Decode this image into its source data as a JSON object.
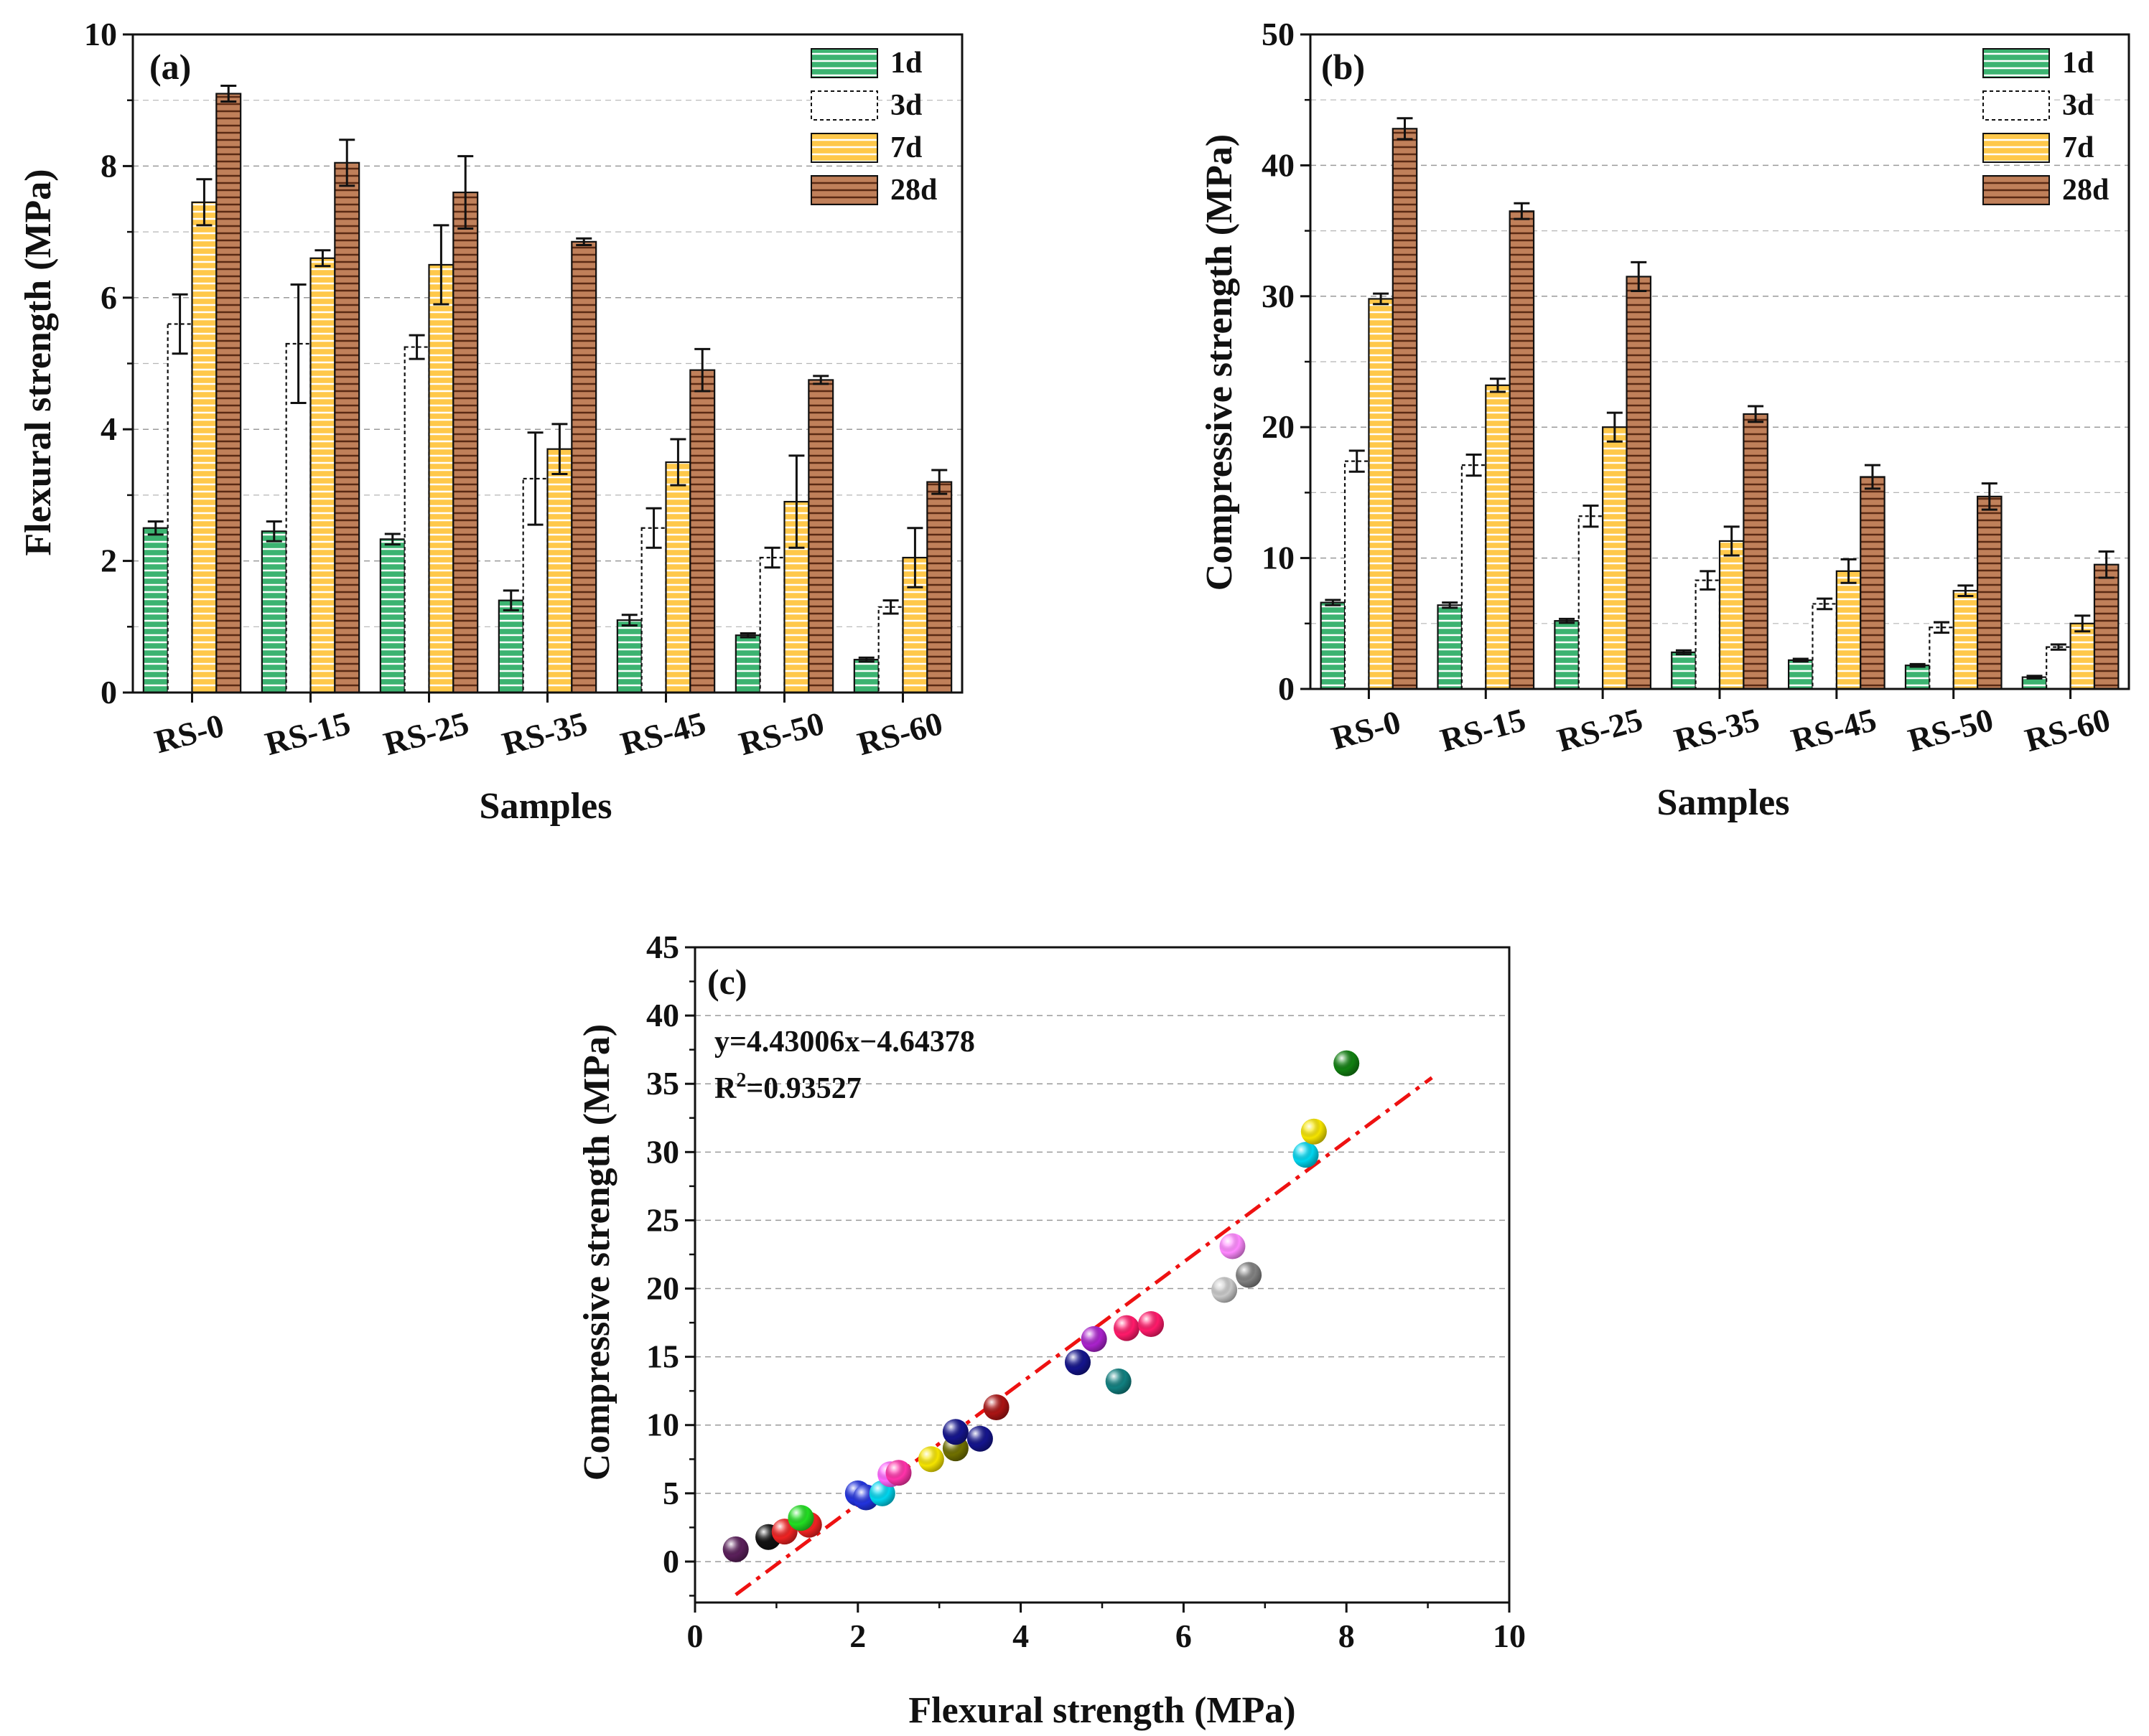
{
  "chart_data": [
    {
      "id": "a",
      "type": "bar",
      "panel_label": "(a)",
      "xlabel": "Samples",
      "ylabel": "Flexural strength (MPa)",
      "ylim": [
        0,
        10
      ],
      "yticks": [
        "0",
        "2",
        "4",
        "6",
        "8",
        "10"
      ],
      "categories": [
        "RS-0",
        "RS-15",
        "RS-25",
        "RS-35",
        "RS-45",
        "RS-50",
        "RS-60"
      ],
      "series": [
        {
          "name": "1d",
          "color": "#3cb371",
          "values": [
            2.5,
            2.45,
            2.33,
            1.4,
            1.1,
            0.87,
            0.5
          ],
          "errors": [
            0.1,
            0.15,
            0.08,
            0.15,
            0.08,
            0.03,
            0.03
          ]
        },
        {
          "name": "3d",
          "color": "#ffffff",
          "values": [
            5.6,
            5.3,
            5.25,
            3.25,
            2.5,
            2.05,
            1.3
          ],
          "errors": [
            0.45,
            0.9,
            0.18,
            0.7,
            0.3,
            0.15,
            0.1
          ]
        },
        {
          "name": "7d",
          "color": "#ffc84a",
          "values": [
            7.45,
            6.6,
            6.5,
            3.7,
            3.5,
            2.9,
            2.05
          ],
          "errors": [
            0.35,
            0.12,
            0.6,
            0.38,
            0.35,
            0.7,
            0.45
          ]
        },
        {
          "name": "28d",
          "color": "#c0805a",
          "values": [
            9.1,
            8.05,
            7.6,
            6.85,
            4.9,
            4.75,
            3.2
          ],
          "errors": [
            0.12,
            0.35,
            0.55,
            0.05,
            0.32,
            0.06,
            0.18
          ]
        }
      ],
      "legend_position": "top-right",
      "grid": true
    },
    {
      "id": "b",
      "type": "bar",
      "panel_label": "(b)",
      "xlabel": "Samples",
      "ylabel": "Compressive strength (MPa)",
      "ylim": [
        0,
        50
      ],
      "yticks": [
        "0",
        "10",
        "20",
        "30",
        "40",
        "50"
      ],
      "categories": [
        "RS-0",
        "RS-15",
        "RS-25",
        "RS-35",
        "RS-45",
        "RS-50",
        "RS-60"
      ],
      "series": [
        {
          "name": "1d",
          "color": "#3cb371",
          "values": [
            6.6,
            6.4,
            5.2,
            2.8,
            2.2,
            1.8,
            0.9
          ],
          "errors": [
            0.2,
            0.2,
            0.15,
            0.15,
            0.1,
            0.1,
            0.1
          ]
        },
        {
          "name": "3d",
          "color": "#ffffff",
          "values": [
            17.4,
            17.1,
            13.2,
            8.3,
            6.5,
            4.7,
            3.2
          ],
          "errors": [
            0.8,
            0.8,
            0.8,
            0.7,
            0.4,
            0.4,
            0.2
          ]
        },
        {
          "name": "7d",
          "color": "#ffc84a",
          "values": [
            29.8,
            23.2,
            20.0,
            11.3,
            9.0,
            7.5,
            5.0
          ],
          "errors": [
            0.4,
            0.5,
            1.1,
            1.1,
            0.9,
            0.4,
            0.6
          ]
        },
        {
          "name": "28d",
          "color": "#c0805a",
          "values": [
            42.8,
            36.5,
            31.5,
            21.0,
            16.2,
            14.7,
            9.5
          ],
          "errors": [
            0.8,
            0.6,
            1.1,
            0.6,
            0.9,
            1.0,
            1.0
          ]
        }
      ],
      "legend_position": "top-right",
      "grid": true
    },
    {
      "id": "c",
      "type": "scatter",
      "panel_label": "(c)",
      "xlabel": "Flexural strength (MPa)",
      "ylabel": "Compressive strength (MPa)",
      "xlim": [
        0,
        10
      ],
      "ylim": [
        -3,
        45
      ],
      "xticks": [
        "0",
        "2",
        "4",
        "6",
        "8",
        "10"
      ],
      "yticks": [
        "0",
        "5",
        "10",
        "15",
        "20",
        "25",
        "30",
        "35",
        "40",
        "45"
      ],
      "equation": "y=4.43006x−4.64378",
      "r2_prefix": "R",
      "r2_sup": "2",
      "r2_value": "=0.93527",
      "fit": {
        "slope": 4.43006,
        "intercept": -4.64378,
        "x_range": [
          0.5,
          9.05
        ],
        "color": "#ee1111"
      },
      "points": [
        {
          "x": 0.5,
          "y": 0.9,
          "color": "#5a1f5a"
        },
        {
          "x": 0.9,
          "y": 1.8,
          "color": "#111111"
        },
        {
          "x": 1.1,
          "y": 2.2,
          "color": "#ee2222"
        },
        {
          "x": 1.4,
          "y": 2.7,
          "color": "#ee2222"
        },
        {
          "x": 1.3,
          "y": 3.2,
          "color": "#22dd22"
        },
        {
          "x": 2.0,
          "y": 5.0,
          "color": "#2233dd"
        },
        {
          "x": 2.1,
          "y": 4.7,
          "color": "#2233dd"
        },
        {
          "x": 2.3,
          "y": 5.0,
          "color": "#00d5ee"
        },
        {
          "x": 2.4,
          "y": 6.4,
          "color": "#ff66ff"
        },
        {
          "x": 2.5,
          "y": 6.5,
          "color": "#ff33aa"
        },
        {
          "x": 2.9,
          "y": 7.5,
          "color": "#f5e400"
        },
        {
          "x": 3.2,
          "y": 8.3,
          "color": "#707000"
        },
        {
          "x": 3.2,
          "y": 9.5,
          "color": "#14148c"
        },
        {
          "x": 3.5,
          "y": 9.0,
          "color": "#14148c"
        },
        {
          "x": 3.7,
          "y": 11.3,
          "color": "#aa1414"
        },
        {
          "x": 4.7,
          "y": 14.6,
          "color": "#14148c"
        },
        {
          "x": 4.9,
          "y": 16.3,
          "color": "#aa22cc"
        },
        {
          "x": 5.2,
          "y": 13.2,
          "color": "#118080"
        },
        {
          "x": 5.3,
          "y": 17.1,
          "color": "#ff1a6a"
        },
        {
          "x": 5.6,
          "y": 17.4,
          "color": "#ff1a6a"
        },
        {
          "x": 6.5,
          "y": 19.9,
          "color": "#c8c8c8"
        },
        {
          "x": 6.6,
          "y": 23.1,
          "color": "#ff88ff"
        },
        {
          "x": 6.8,
          "y": 21.0,
          "color": "#808080"
        },
        {
          "x": 7.5,
          "y": 29.8,
          "color": "#00d5ee"
        },
        {
          "x": 7.6,
          "y": 31.5,
          "color": "#f5e400"
        },
        {
          "x": 8.0,
          "y": 36.5,
          "color": "#118011"
        }
      ],
      "grid": true
    }
  ]
}
